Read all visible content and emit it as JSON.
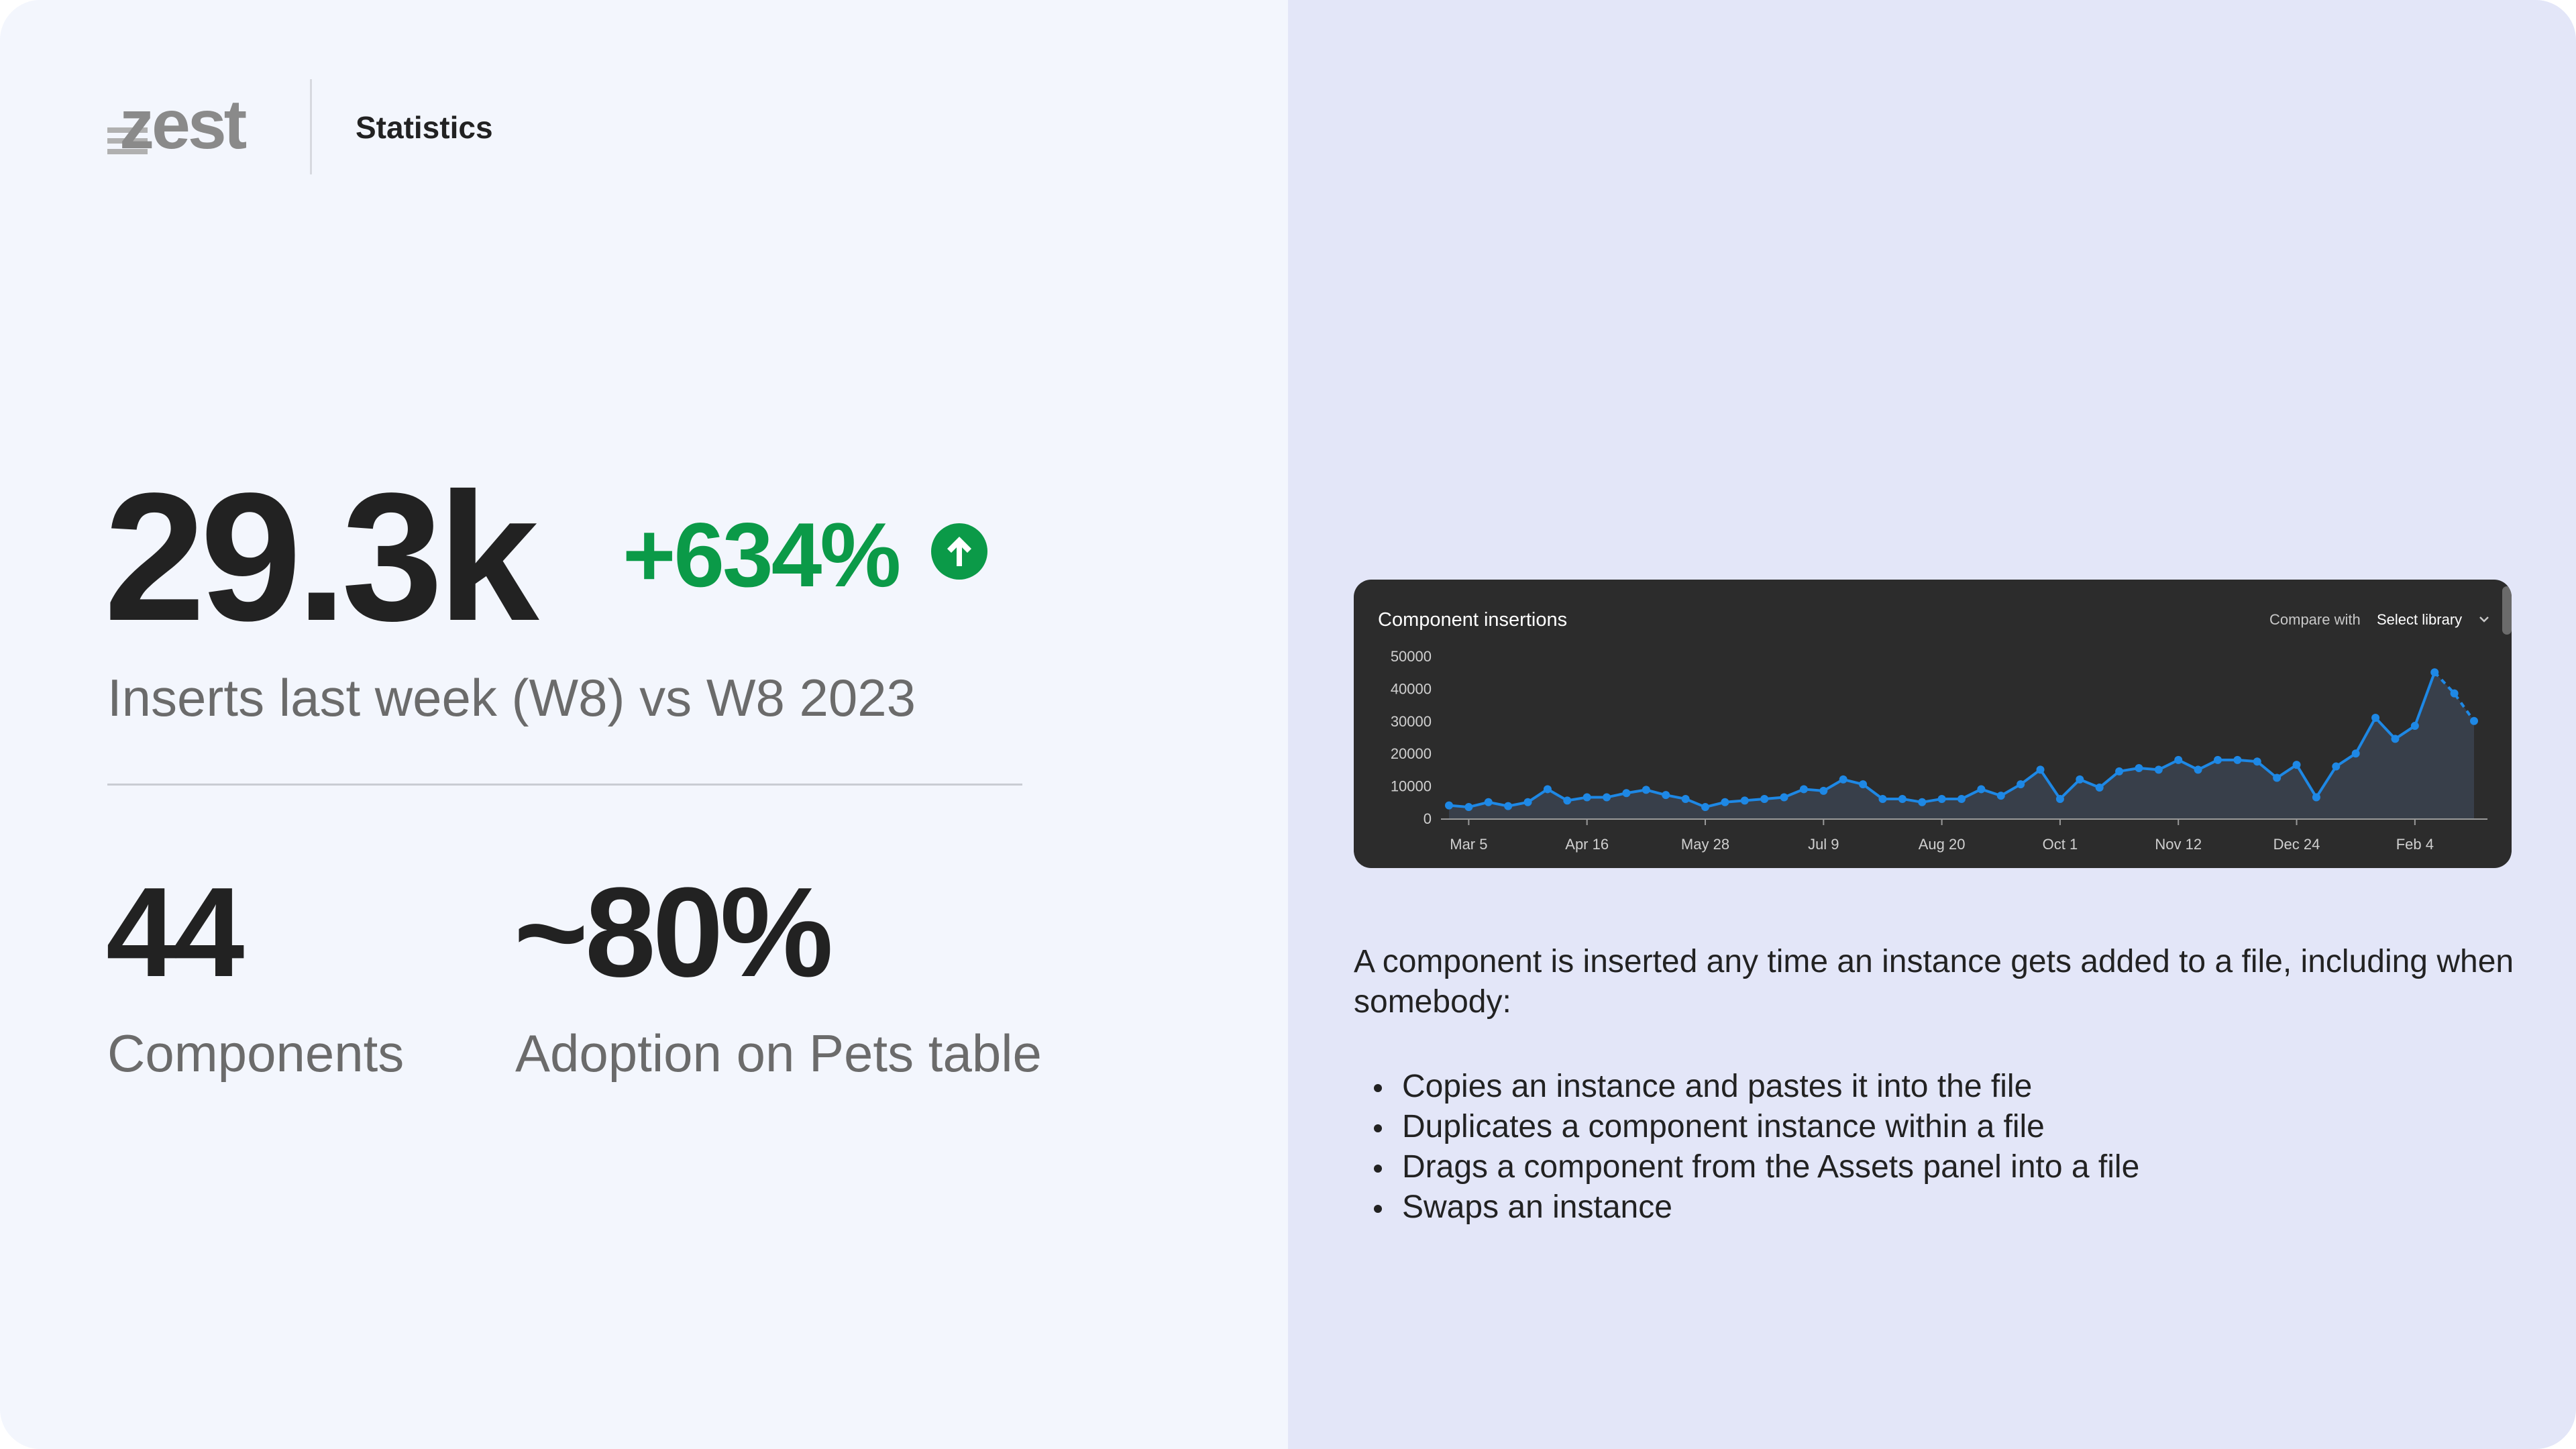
{
  "header": {
    "logo_text": "zest",
    "page_title": "Statistics"
  },
  "headline": {
    "value": "29.3k",
    "delta": "+634%",
    "delta_icon": "arrow-up-circle-icon",
    "caption": "Inserts last week (W8) vs W8 2023"
  },
  "stats": [
    {
      "value": "44",
      "caption": "Components"
    },
    {
      "value": "~80%",
      "caption": "Adoption on Pets table"
    }
  ],
  "colors": {
    "positive": "#0b9a48",
    "line": "#1e88e5",
    "chart_bg": "#2c2c2c",
    "left_bg": "#f3f6fd",
    "right_bg": "#e3e6f8"
  },
  "chart_card": {
    "title": "Component insertions",
    "compare_label": "Compare with",
    "select_label": "Select library",
    "select_icon": "chevron-down-icon"
  },
  "chart_data": {
    "type": "area",
    "title": "Component insertions",
    "xlabel": "",
    "ylabel": "",
    "ylim": [
      0,
      50000
    ],
    "yticks": [
      0,
      10000,
      20000,
      30000,
      40000,
      50000
    ],
    "ytick_labels": [
      "0",
      "10000",
      "20000",
      "30000",
      "40000",
      "50000"
    ],
    "xtick_labels": [
      {
        "index": 1,
        "label": "Mar 5"
      },
      {
        "index": 7,
        "label": "Apr 16"
      },
      {
        "index": 13,
        "label": "May 28"
      },
      {
        "index": 19,
        "label": "Jul 9"
      },
      {
        "index": 25,
        "label": "Aug 20"
      },
      {
        "index": 31,
        "label": "Oct 1"
      },
      {
        "index": 37,
        "label": "Nov 12"
      },
      {
        "index": 43,
        "label": "Dec 24"
      },
      {
        "index": 49,
        "label": "Feb 4"
      }
    ],
    "grid": false,
    "series": [
      {
        "values": [
          4000,
          3500,
          5000,
          3800,
          5000,
          9000,
          5500,
          6500,
          6500,
          7800,
          8800,
          7200,
          6000,
          3500,
          5000,
          5500,
          6000,
          6500,
          9000,
          8500,
          12000,
          10500,
          6000,
          6000,
          5000,
          6000,
          6000,
          9000,
          7000,
          10500,
          15000,
          6000,
          12000,
          9500,
          14500,
          15500,
          15000,
          18000,
          15000,
          18000,
          18000,
          17500,
          12500,
          16500,
          6500,
          16000,
          20000,
          31000,
          24500,
          28500,
          45000,
          38500,
          30000
        ],
        "dashed_last_segments": 2
      }
    ]
  },
  "description": {
    "intro": "A component is inserted any time an instance gets added to a file, including when somebody:",
    "bullets": [
      "Copies an instance and pastes it into the file",
      "Duplicates a component instance within a file",
      "Drags a component from the Assets panel into a file",
      "Swaps an instance"
    ]
  }
}
